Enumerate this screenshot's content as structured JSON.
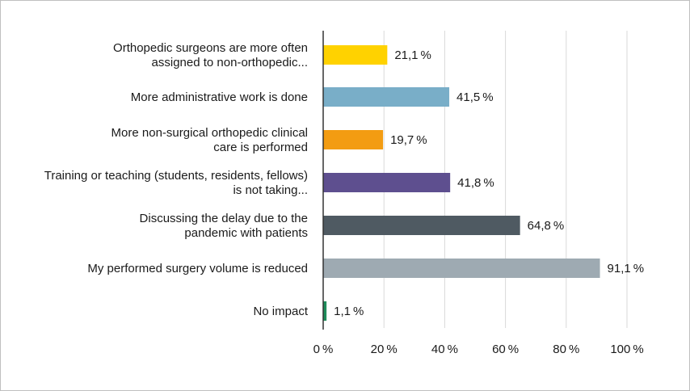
{
  "chart_data": {
    "type": "bar",
    "orientation": "horizontal",
    "categories": [
      [
        "Orthopedic surgeons are more often",
        "assigned to non-orthopedic..."
      ],
      [
        "More administrative work is done"
      ],
      [
        "More non-surgical orthopedic clinical",
        "care is performed"
      ],
      [
        "Training or teaching (students, residents, fellows)",
        "is not taking..."
      ],
      [
        "Discussing the delay due to the",
        "pandemic with patients"
      ],
      [
        "My performed surgery volume is reduced"
      ],
      [
        "No impact"
      ]
    ],
    "values": [
      21.1,
      41.5,
      19.7,
      41.8,
      64.8,
      91.1,
      1.1
    ],
    "value_labels": [
      "21,1 %",
      "41,5 %",
      "19,7 %",
      "41,8 %",
      "64,8 %",
      "91,1 %",
      "1,1 %"
    ],
    "colors": [
      "#ffd200",
      "#79aec8",
      "#f39c12",
      "#5e4f8f",
      "#4f5a62",
      "#9eaab2",
      "#1e8c5a"
    ],
    "xlim": [
      0,
      100
    ],
    "xticks": [
      0,
      20,
      40,
      60,
      80,
      100
    ],
    "xtick_labels": [
      "0 %",
      "20 %",
      "40 %",
      "60 %",
      "80 %",
      "100 %"
    ],
    "grid": true,
    "gridline_color": "#d9d9d9",
    "axis_color": "#333333"
  }
}
